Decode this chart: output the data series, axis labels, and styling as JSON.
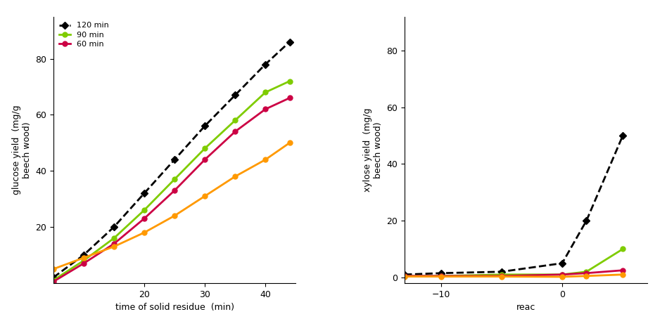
{
  "left_panel": {
    "xlabel": "time of solid residue  (min)",
    "ylabel": "glucose yield  (mg/g\nbeech wood)",
    "xlim": [
      5,
      45
    ],
    "ylim": [
      0,
      95
    ],
    "yticks": [
      20,
      40,
      60,
      80
    ],
    "xticks": [
      20,
      30,
      40
    ],
    "legend_labels": [
      "120 min",
      "90 min",
      "60 min"
    ],
    "legend_colors": [
      "#000000",
      "#7FCC00",
      "#CC0044"
    ],
    "legend_styles": [
      "--",
      "-",
      "-"
    ],
    "legend_markers": [
      "D",
      "o",
      "o"
    ],
    "series": {
      "black_dashed": {
        "x": [
          5,
          10,
          15,
          20,
          25,
          30,
          35,
          40,
          44
        ],
        "y": [
          2,
          10,
          20,
          32,
          44,
          56,
          67,
          78,
          86
        ],
        "color": "#000000",
        "linestyle": "--",
        "marker": "D",
        "markersize": 5,
        "linewidth": 2.0
      },
      "green": {
        "x": [
          5,
          10,
          15,
          20,
          25,
          30,
          35,
          40,
          44
        ],
        "y": [
          1,
          8,
          16,
          26,
          37,
          48,
          58,
          68,
          72
        ],
        "color": "#7FCC00",
        "linestyle": "-",
        "marker": "o",
        "markersize": 5,
        "linewidth": 2.0
      },
      "red": {
        "x": [
          5,
          10,
          15,
          20,
          25,
          30,
          35,
          40,
          44
        ],
        "y": [
          0.5,
          7,
          14,
          23,
          33,
          44,
          54,
          62,
          66
        ],
        "color": "#CC0044",
        "linestyle": "-",
        "marker": "o",
        "markersize": 5,
        "linewidth": 2.0
      },
      "orange": {
        "x": [
          5,
          10,
          15,
          20,
          25,
          30,
          35,
          40,
          44
        ],
        "y": [
          5,
          9,
          13,
          18,
          24,
          31,
          38,
          44,
          50
        ],
        "color": "#FF9900",
        "linestyle": "-",
        "marker": "o",
        "markersize": 5,
        "linewidth": 2.0
      }
    }
  },
  "right_panel": {
    "xlabel": "reac",
    "ylabel": "xylose yield  (mg/g\nbeech wood)",
    "xlim": [
      -13,
      7
    ],
    "ylim": [
      -2,
      92
    ],
    "yticks": [
      0,
      20,
      40,
      60,
      80
    ],
    "xticks": [
      -10,
      0
    ],
    "series": {
      "black_dashed": {
        "x": [
          -13,
          -10,
          -5,
          0,
          2,
          5
        ],
        "y": [
          1,
          1.5,
          2,
          5,
          20,
          50
        ],
        "color": "#000000",
        "linestyle": "--",
        "marker": "D",
        "markersize": 5,
        "linewidth": 2.0
      },
      "green": {
        "x": [
          -13,
          -10,
          -5,
          0,
          2,
          5
        ],
        "y": [
          0.5,
          0.5,
          1,
          1,
          2,
          10
        ],
        "color": "#7FCC00",
        "linestyle": "-",
        "marker": "o",
        "markersize": 5,
        "linewidth": 2.0
      },
      "red": {
        "x": [
          -13,
          -10,
          -5,
          0,
          2,
          5
        ],
        "y": [
          0.5,
          0.5,
          0.5,
          1,
          1.5,
          2.5
        ],
        "color": "#CC0044",
        "linestyle": "-",
        "marker": "o",
        "markersize": 5,
        "linewidth": 2.0
      },
      "orange": {
        "x": [
          -13,
          -10,
          -5,
          0,
          2,
          5
        ],
        "y": [
          0.3,
          0.3,
          0.3,
          0.2,
          0.5,
          1.0
        ],
        "color": "#FF9900",
        "linestyle": "-",
        "marker": "o",
        "markersize": 5,
        "linewidth": 2.0
      }
    }
  },
  "background_color": "#FFFFFF",
  "figure_width": 9.48,
  "figure_height": 4.74,
  "dpi": 100
}
